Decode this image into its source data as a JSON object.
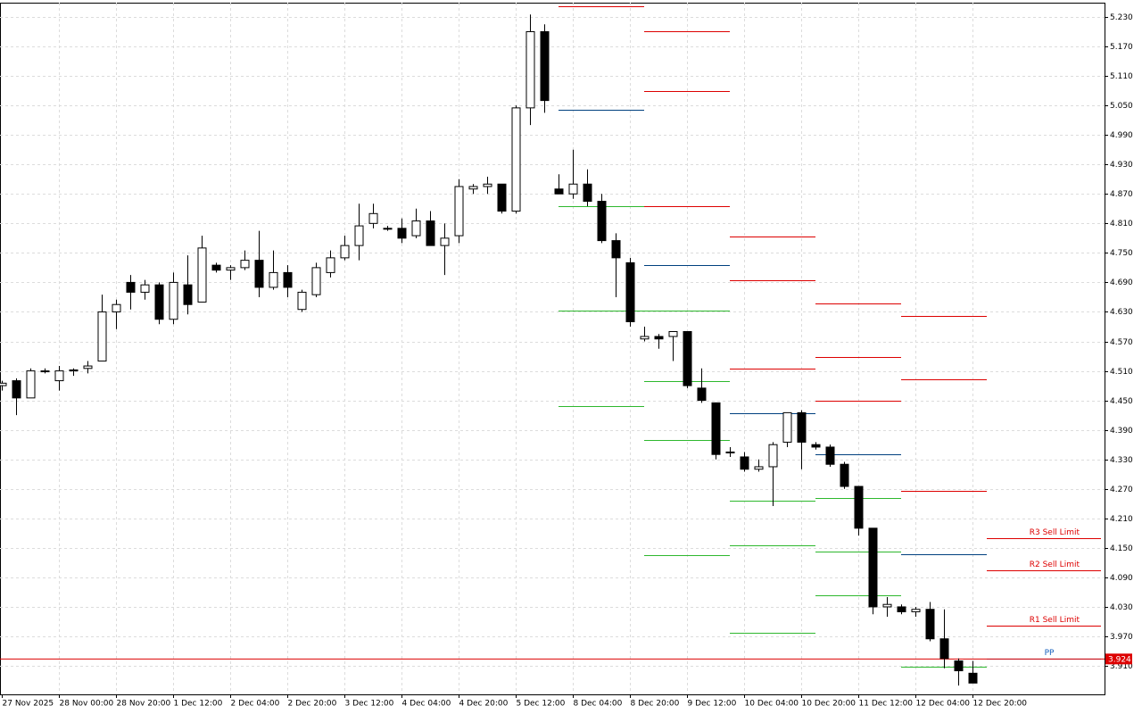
{
  "chart_data": {
    "type": "candlestick",
    "categories": [
      "27 Nov 2025",
      null,
      null,
      null,
      "28 Nov 00:00",
      null,
      null,
      null,
      "28 Nov 20:00",
      null,
      null,
      null,
      "1 Dec 12:00",
      null,
      null,
      null,
      "2 Dec 04:00",
      null,
      null,
      null,
      "2 Dec 20:00",
      null,
      null,
      null,
      "3 Dec 12:00",
      null,
      null,
      null,
      "4 Dec 04:00",
      null,
      null,
      null,
      "4 Dec 20:00",
      null,
      null,
      null,
      "5 Dec 12:00",
      null,
      null,
      null,
      "8 Dec 04:00",
      null,
      null,
      null,
      "8 Dec 20:00",
      null,
      null,
      null,
      "9 Dec 12:00",
      null,
      null,
      null,
      "10 Dec 04:00",
      null,
      null,
      null,
      "10 Dec 20:00",
      null,
      null,
      null,
      "11 Dec 12:00",
      null,
      null,
      null,
      "12 Dec 04:00",
      null,
      null,
      null,
      "12 Dec 20:00"
    ],
    "open": [
      4.48,
      4.49,
      4.455,
      4.51,
      4.49,
      4.51,
      4.515,
      4.53,
      4.63,
      4.69,
      4.67,
      4.685,
      4.615,
      4.685,
      4.65,
      4.725,
      4.715,
      4.72,
      4.735,
      4.68,
      4.71,
      4.635,
      4.665,
      4.71,
      4.74,
      4.765,
      4.81,
      4.8,
      4.8,
      4.785,
      4.815,
      4.765,
      4.785,
      4.88,
      4.885,
      4.89,
      4.835,
      5.045,
      5.2,
      4.88,
      4.87,
      4.89,
      4.855,
      4.775,
      4.73,
      4.575,
      4.58,
      4.58,
      4.59,
      4.475,
      4.445,
      4.345,
      4.335,
      4.31,
      4.315,
      4.365,
      4.425,
      4.36,
      4.355,
      4.32,
      4.275,
      4.19,
      4.03,
      4.03,
      4.02,
      4.025,
      3.965,
      3.92,
      3.895
    ],
    "high": [
      4.49,
      4.495,
      4.515,
      4.515,
      4.52,
      4.515,
      4.53,
      4.665,
      4.655,
      4.705,
      4.695,
      4.69,
      4.71,
      4.745,
      4.785,
      4.73,
      4.725,
      4.755,
      4.795,
      4.755,
      4.725,
      4.675,
      4.73,
      4.755,
      4.785,
      4.85,
      4.85,
      4.805,
      4.82,
      4.84,
      4.835,
      4.81,
      4.9,
      4.89,
      4.905,
      4.89,
      5.05,
      5.235,
      5.215,
      4.91,
      4.96,
      4.92,
      4.87,
      4.79,
      4.74,
      4.6,
      4.585,
      4.59,
      4.59,
      4.515,
      4.445,
      4.355,
      4.345,
      4.33,
      4.365,
      4.425,
      4.43,
      4.365,
      4.36,
      4.325,
      4.275,
      4.19,
      4.05,
      4.035,
      4.03,
      4.04,
      4.025,
      3.925,
      3.92
    ],
    "low": [
      4.47,
      4.42,
      4.455,
      4.505,
      4.47,
      4.5,
      4.505,
      4.53,
      4.595,
      4.635,
      4.655,
      4.605,
      4.605,
      4.625,
      4.65,
      4.71,
      4.695,
      4.715,
      4.66,
      4.675,
      4.66,
      4.63,
      4.66,
      4.7,
      4.735,
      4.735,
      4.8,
      4.795,
      4.77,
      4.78,
      4.765,
      4.705,
      4.77,
      4.87,
      4.87,
      4.83,
      4.83,
      5.01,
      5.035,
      4.87,
      4.86,
      4.845,
      4.77,
      4.66,
      4.6,
      4.57,
      4.555,
      4.53,
      4.475,
      4.445,
      4.33,
      4.335,
      4.305,
      4.305,
      4.235,
      4.355,
      4.31,
      4.35,
      4.315,
      4.27,
      4.175,
      4.015,
      4.01,
      4.015,
      4.01,
      3.96,
      3.905,
      3.87,
      3.875
    ],
    "close": [
      4.485,
      4.455,
      4.51,
      4.51,
      4.51,
      4.512,
      4.52,
      4.63,
      4.645,
      4.67,
      4.685,
      4.615,
      4.69,
      4.645,
      4.76,
      4.715,
      4.72,
      4.735,
      4.68,
      4.71,
      4.68,
      4.67,
      4.72,
      4.74,
      4.765,
      4.805,
      4.83,
      4.8,
      4.78,
      4.815,
      4.765,
      4.78,
      4.885,
      4.885,
      4.89,
      4.835,
      5.045,
      5.2,
      5.06,
      4.87,
      4.89,
      4.855,
      4.775,
      4.74,
      4.61,
      4.58,
      4.575,
      4.59,
      4.48,
      4.45,
      4.34,
      4.345,
      4.31,
      4.315,
      4.36,
      4.425,
      4.365,
      4.355,
      4.32,
      4.275,
      4.19,
      4.03,
      4.035,
      4.02,
      4.025,
      3.965,
      3.925,
      3.9,
      3.875
    ],
    "up_color": "#ffffff",
    "down_color": "#000000",
    "ylim": [
      3.852,
      5.259
    ],
    "yticks": [
      {
        "value": 3.91,
        "label": "3.910"
      },
      {
        "value": 3.97,
        "label": "3.970"
      },
      {
        "value": 4.03,
        "label": "4.030"
      },
      {
        "value": 4.09,
        "label": "4.090"
      },
      {
        "value": 4.15,
        "label": "4.150"
      },
      {
        "value": 4.21,
        "label": "4.210"
      },
      {
        "value": 4.27,
        "label": "4.270"
      },
      {
        "value": 4.33,
        "label": "4.330"
      },
      {
        "value": 4.39,
        "label": "4.390"
      },
      {
        "value": 4.45,
        "label": "4.450"
      },
      {
        "value": 4.51,
        "label": "4.510"
      },
      {
        "value": 4.57,
        "label": "4.570"
      },
      {
        "value": 4.63,
        "label": "4.630"
      },
      {
        "value": 4.69,
        "label": "4.690"
      },
      {
        "value": 4.75,
        "label": "4.750"
      },
      {
        "value": 4.81,
        "label": "4.810"
      },
      {
        "value": 4.87,
        "label": "4.870"
      },
      {
        "value": 4.93,
        "label": "4.930"
      },
      {
        "value": 4.99,
        "label": "4.990"
      },
      {
        "value": 5.05,
        "label": "5.050"
      },
      {
        "value": 5.11,
        "label": "5.110"
      },
      {
        "value": 5.17,
        "label": "5.170"
      },
      {
        "value": 5.23,
        "label": "5.230"
      }
    ],
    "grid": true,
    "levels": [
      {
        "start": 39,
        "end": 45,
        "value": 5.252,
        "color": "#dd0000"
      },
      {
        "start": 39,
        "end": 45,
        "value": 5.041,
        "color": "#00407f"
      },
      {
        "start": 39,
        "end": 45,
        "value": 4.845,
        "color": "#2eb82e"
      },
      {
        "start": 39,
        "end": 45,
        "value": 4.633,
        "color": "#2eb82e"
      },
      {
        "start": 39,
        "end": 45,
        "value": 4.438,
        "color": "#2eb82e"
      },
      {
        "start": 45,
        "end": 51,
        "value": 5.201,
        "color": "#dd0000"
      },
      {
        "start": 45,
        "end": 51,
        "value": 5.079,
        "color": "#dd0000"
      },
      {
        "start": 45,
        "end": 51,
        "value": 4.845,
        "color": "#dd0000"
      },
      {
        "start": 45,
        "end": 51,
        "value": 4.725,
        "color": "#00407f"
      },
      {
        "start": 45,
        "end": 51,
        "value": 4.633,
        "color": "#2eb82e"
      },
      {
        "start": 45,
        "end": 51,
        "value": 4.489,
        "color": "#2eb82e"
      },
      {
        "start": 45,
        "end": 51,
        "value": 4.369,
        "color": "#2eb82e"
      },
      {
        "start": 45,
        "end": 51,
        "value": 4.135,
        "color": "#2eb82e"
      },
      {
        "start": 51,
        "end": 57,
        "value": 4.783,
        "color": "#dd0000"
      },
      {
        "start": 51,
        "end": 57,
        "value": 4.694,
        "color": "#dd0000"
      },
      {
        "start": 51,
        "end": 57,
        "value": 4.515,
        "color": "#dd0000"
      },
      {
        "start": 51,
        "end": 57,
        "value": 4.424,
        "color": "#00407f"
      },
      {
        "start": 51,
        "end": 57,
        "value": 4.246,
        "color": "#2eb82e"
      },
      {
        "start": 51,
        "end": 57,
        "value": 4.155,
        "color": "#2eb82e"
      },
      {
        "start": 51,
        "end": 57,
        "value": 3.977,
        "color": "#2eb82e"
      },
      {
        "start": 57,
        "end": 63,
        "value": 4.647,
        "color": "#dd0000"
      },
      {
        "start": 57,
        "end": 63,
        "value": 4.538,
        "color": "#dd0000"
      },
      {
        "start": 57,
        "end": 63,
        "value": 4.449,
        "color": "#dd0000"
      },
      {
        "start": 57,
        "end": 63,
        "value": 4.34,
        "color": "#00407f"
      },
      {
        "start": 57,
        "end": 63,
        "value": 4.251,
        "color": "#2eb82e"
      },
      {
        "start": 57,
        "end": 63,
        "value": 4.142,
        "color": "#2eb82e"
      },
      {
        "start": 57,
        "end": 63,
        "value": 4.054,
        "color": "#2eb82e"
      },
      {
        "start": 63,
        "end": 69,
        "value": 4.622,
        "color": "#dd0000"
      },
      {
        "start": 63,
        "end": 69,
        "value": 4.493,
        "color": "#dd0000"
      },
      {
        "start": 63,
        "end": 69,
        "value": 4.266,
        "color": "#dd0000"
      },
      {
        "start": 63,
        "end": 69,
        "value": 4.137,
        "color": "#00407f"
      },
      {
        "start": 63,
        "end": 69,
        "value": 3.908,
        "color": "#2eb82e"
      },
      {
        "start": 69,
        "end": 77,
        "value": 4.17,
        "color": "#dd0000",
        "label": "R3 Sell Limit"
      },
      {
        "start": 69,
        "end": 77,
        "value": 4.104,
        "color": "#dd0000",
        "label": "R2 Sell Limit"
      },
      {
        "start": 69,
        "end": 77,
        "value": 3.992,
        "color": "#dd0000",
        "label": "R1 Sell Limit"
      },
      {
        "start": 69,
        "end": 77,
        "value": 3.925,
        "color": "#1560bd",
        "label": "PP"
      }
    ],
    "last_price": 3.924,
    "last_price_color": "#dd0000"
  }
}
